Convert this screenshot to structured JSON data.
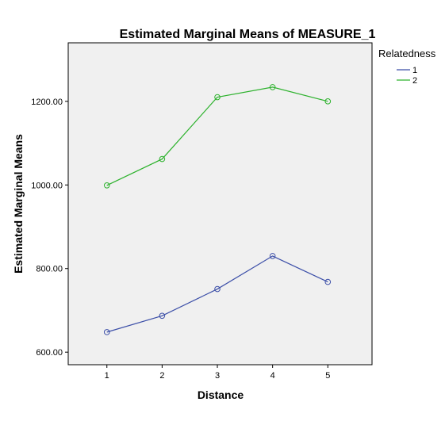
{
  "chart_data": {
    "type": "line",
    "title": "Estimated Marginal Means of MEASURE_1",
    "xlabel": "Distance",
    "ylabel": "Estimated Marginal Means",
    "x": [
      1,
      2,
      3,
      4,
      5
    ],
    "x_tick_labels": [
      "1",
      "2",
      "3",
      "4",
      "5"
    ],
    "y_ticks": [
      600,
      800,
      1000,
      1200
    ],
    "y_tick_labels": [
      "600.00",
      "800.00",
      "1000.00",
      "1200.00"
    ],
    "ylim": [
      570,
      1340
    ],
    "xlim": [
      0.3,
      5.8
    ],
    "grid": false,
    "legend": {
      "title": "Relatedness",
      "placement": "right"
    },
    "series": [
      {
        "name": "1",
        "color": "#3c4fa8",
        "values": [
          648,
          687,
          751,
          830,
          768
        ]
      },
      {
        "name": "2",
        "color": "#2db22d",
        "values": [
          999,
          1062,
          1210,
          1234,
          1200
        ]
      }
    ],
    "plot_background": "#f0f0f0"
  }
}
